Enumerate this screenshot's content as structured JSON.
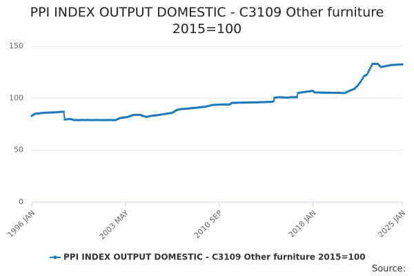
{
  "chart_data": {
    "type": "line",
    "title": "PPI INDEX OUTPUT DOMESTIC - C3109 Other furniture 2015=100",
    "source": "Source:",
    "legend": "bottom",
    "grid": true,
    "ylim": [
      0,
      150
    ],
    "yticks": [
      0,
      50,
      100,
      150
    ],
    "categories": [
      "1996 JAN",
      null,
      null,
      null,
      null,
      null,
      null,
      null,
      null,
      null,
      null,
      null,
      null,
      null,
      null,
      null,
      null,
      null,
      null,
      null,
      null,
      null,
      null,
      null,
      null,
      null,
      null,
      null,
      null,
      null,
      null,
      null,
      null,
      null,
      null,
      null,
      null,
      null,
      null,
      null,
      null,
      null,
      null,
      null,
      null,
      null,
      null,
      null,
      null,
      null,
      null,
      null,
      null,
      null,
      null,
      null,
      null,
      null,
      null,
      null,
      null,
      null,
      null,
      null,
      null,
      null,
      null,
      null,
      null,
      null,
      null,
      null,
      null,
      null,
      null,
      null,
      null,
      null,
      null,
      null,
      null,
      null,
      null,
      null,
      null,
      null,
      null,
      null,
      "2003 MAY",
      null,
      null,
      null,
      null,
      null,
      null,
      null,
      null,
      null,
      null,
      null,
      null,
      null,
      null,
      null,
      null,
      null,
      null,
      null,
      null,
      null,
      null,
      null,
      null,
      null,
      null,
      null,
      null,
      null,
      null,
      null,
      null,
      null,
      null,
      null,
      null,
      null,
      null,
      null,
      null,
      null,
      null,
      null,
      null,
      null,
      null,
      null,
      null,
      null,
      null,
      null,
      null,
      null,
      null,
      null,
      null,
      null,
      null,
      null,
      null,
      null,
      null,
      null,
      null,
      null,
      null,
      null,
      null,
      null,
      null,
      null,
      null,
      null,
      null,
      null,
      null,
      null,
      null,
      null,
      null,
      null,
      null,
      null,
      null,
      null,
      null,
      null,
      "2010 SEP",
      null,
      null,
      null,
      null,
      null,
      null,
      null,
      null,
      null,
      null,
      null,
      null,
      null,
      null,
      null,
      null,
      null,
      null,
      null,
      null,
      null,
      null,
      null,
      null,
      null,
      null,
      null,
      null,
      null,
      null,
      null,
      null,
      null,
      null,
      null,
      null,
      null,
      null,
      null,
      null,
      null,
      null,
      null,
      null,
      null,
      null,
      null,
      null,
      null,
      null,
      null,
      null,
      null,
      null,
      null,
      null,
      null,
      null,
      null,
      null,
      null,
      null,
      null,
      null,
      null,
      null,
      null,
      null,
      null,
      null,
      null,
      null,
      null,
      null,
      null,
      null,
      null,
      null,
      null,
      null,
      null,
      null,
      null,
      null,
      null,
      null,
      null,
      "2018 JAN",
      null,
      null,
      null,
      null,
      null,
      null,
      null,
      null,
      null,
      null,
      null,
      null,
      null,
      null,
      null,
      null,
      null,
      null,
      null,
      null,
      null,
      null,
      null,
      null,
      null,
      null,
      null,
      null,
      null,
      null,
      null,
      null,
      null,
      null,
      null,
      null,
      null,
      null,
      null,
      null,
      null,
      null,
      null,
      null,
      null,
      null,
      null,
      null,
      null,
      null,
      null,
      null,
      null,
      null,
      null,
      null,
      null,
      null,
      null,
      null,
      null,
      null,
      null,
      null,
      null,
      null,
      null,
      null,
      null,
      null,
      null,
      null,
      null,
      null,
      null,
      null,
      null,
      null,
      null,
      null,
      null,
      null,
      null,
      "2025 JAN"
    ],
    "series": [
      {
        "name": "PPI INDEX OUTPUT DOMESTIC - C3109 Other furniture 2015=100",
        "color": "#1f7ab8",
        "values": [
          83,
          83.7,
          84.3,
          85,
          85.1,
          85.2,
          85.3,
          85.4,
          85.6,
          85.7,
          85.8,
          85.9,
          86,
          86,
          86.1,
          86.1,
          86.2,
          86.2,
          86.3,
          86.3,
          86.3,
          86.4,
          86.4,
          86.5,
          86.5,
          86.6,
          86.8,
          86.9,
          87,
          87,
          87,
          79.5,
          79.6,
          79.7,
          79.8,
          79.9,
          80,
          79.8,
          79.5,
          79.2,
          79,
          79,
          79.1,
          79,
          78.9,
          79,
          79,
          79.1,
          79,
          79,
          79,
          79,
          79,
          79.1,
          79,
          79,
          78.9,
          79,
          79,
          79,
          79,
          79.1,
          79,
          79,
          79,
          79,
          79,
          78.9,
          79,
          79,
          79,
          79,
          79.1,
          79,
          79,
          79,
          78.9,
          79,
          79,
          79,
          79.5,
          80,
          80.5,
          81,
          81,
          81.2,
          81.3,
          81.5,
          81.7,
          81.8,
          82,
          82.3,
          82.7,
          83,
          83.3,
          83.7,
          84,
          84,
          84,
          84,
          84,
          84,
          84,
          83.5,
          83,
          82.8,
          82.5,
          82.2,
          82,
          82.3,
          82.5,
          82.8,
          83,
          83.1,
          83.3,
          83.4,
          83.5,
          83.6,
          83.8,
          83.9,
          84,
          84.2,
          84.3,
          84.5,
          84.7,
          84.8,
          85,
          85.2,
          85.3,
          85.5,
          85.7,
          85.8,
          86,
          86.6,
          87.3,
          87.9,
          88.5,
          88.8,
          89,
          89.3,
          89.5,
          89.6,
          89.7,
          89.8,
          89.8,
          89.9,
          90,
          90.1,
          90.2,
          90.3,
          90.4,
          90.5,
          90.6,
          90.7,
          90.8,
          90.9,
          91,
          91.1,
          91.3,
          91.4,
          91.5,
          91.6,
          91.8,
          91.9,
          92,
          92.3,
          92.5,
          92.8,
          93,
          93.3,
          93.5,
          93.6,
          93.6,
          93.7,
          93.7,
          93.8,
          93.8,
          93.9,
          93.9,
          94,
          94,
          94,
          94,
          94,
          94,
          94,
          94,
          94.8,
          95.5,
          95.5,
          95.6,
          95.6,
          95.6,
          95.6,
          95.7,
          95.7,
          95.7,
          95.7,
          95.8,
          95.8,
          95.8,
          95.8,
          95.8,
          95.9,
          95.9,
          95.9,
          95.9,
          95.9,
          96,
          96,
          96,
          96,
          96,
          96.1,
          96.1,
          96.1,
          96.2,
          96.2,
          96.2,
          96.3,
          96.3,
          96.3,
          96.4,
          96.4,
          96.4,
          96.5,
          96.7,
          97,
          100.5,
          100.6,
          100.7,
          100.8,
          101,
          100.9,
          100.9,
          100.8,
          100.8,
          100.7,
          100.6,
          100.6,
          100.5,
          100.6,
          100.8,
          100.9,
          101,
          101,
          101,
          101,
          101,
          101,
          105,
          105.2,
          105.3,
          105.5,
          105.7,
          105.8,
          106,
          106.1,
          106.3,
          106.4,
          106.5,
          106.6,
          106.8,
          106.9,
          107,
          106.2,
          105.5,
          105.5,
          105.5,
          105.5,
          105.5,
          105.4,
          105.4,
          105.4,
          105.4,
          105.4,
          105.3,
          105.3,
          105.3,
          105.3,
          105.3,
          105.2,
          105.2,
          105.2,
          105.2,
          105.2,
          105.1,
          105.1,
          105.1,
          105.1,
          105.1,
          105,
          105,
          105,
          105,
          105.5,
          106,
          106.5,
          107,
          107.4,
          107.8,
          108.2,
          108.6,
          109,
          110,
          111,
          112,
          113.3,
          114.7,
          116,
          117.7,
          119.3,
          121,
          121.7,
          122.3,
          123,
          125,
          127,
          129,
          131,
          133,
          133,
          133,
          133,
          133,
          133,
          132,
          131,
          130,
          130.2,
          130.4,
          130.6,
          130.8,
          131,
          131.2,
          131.4,
          131.6,
          131.8,
          132,
          132,
          132.1,
          132.1,
          132.2,
          132.2,
          132.3,
          132.3,
          132.4,
          132.4,
          132.5
        ]
      }
    ]
  }
}
